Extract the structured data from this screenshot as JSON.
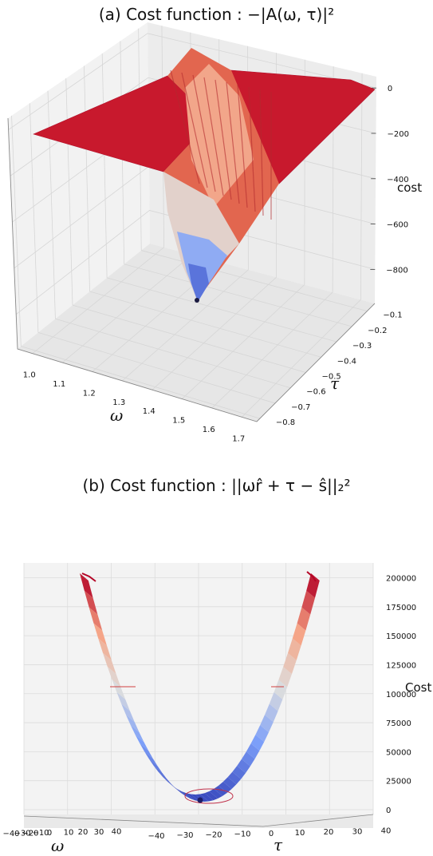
{
  "chart_data": [
    {
      "type": "surface3d",
      "title": "(a) Cost function : −|A(ω, τ)|²",
      "xlabel": "ω",
      "ylabel": "τ",
      "zlabel": "cost",
      "xticks": [
        "1.0",
        "1.1",
        "1.2",
        "1.3",
        "1.4",
        "1.5",
        "1.6",
        "1.7"
      ],
      "yticks": [
        "−0.1",
        "−0.2",
        "−0.3",
        "−0.4",
        "−0.5",
        "−0.6",
        "−0.7",
        "−0.8"
      ],
      "zticks": [
        "0",
        "−200",
        "−400",
        "−600",
        "−800"
      ],
      "xlim": [
        0.95,
        1.75
      ],
      "ylim": [
        -0.82,
        -0.05
      ],
      "zlim": [
        -950,
        50
      ],
      "minimum": {
        "x": 1.25,
        "y": -0.55,
        "z": -920
      },
      "colormap": "coolwarm",
      "grid": true
    },
    {
      "type": "surface3d",
      "title": "(b) Cost function : ||ωr̂ + τ − ŝ||₂²",
      "xlabel": "ω",
      "ylabel": "τ",
      "zlabel": "Cost",
      "xticks": [
        "−40",
        "−30",
        "−20",
        "−10",
        "0",
        "10",
        "20",
        "30",
        "40"
      ],
      "yticks": [
        "−40",
        "−30",
        "−20",
        "−10",
        "0",
        "10",
        "20",
        "30",
        "40"
      ],
      "zticks": [
        "0",
        "25000",
        "50000",
        "75000",
        "100000",
        "125000",
        "150000",
        "175000",
        "200000"
      ],
      "xlim": [
        -40,
        40
      ],
      "ylim": [
        -40,
        40
      ],
      "zlim": [
        0,
        210000
      ],
      "minimum": {
        "x": 0,
        "y": 0,
        "z": 0
      },
      "colormap": "coolwarm",
      "grid": true
    }
  ]
}
